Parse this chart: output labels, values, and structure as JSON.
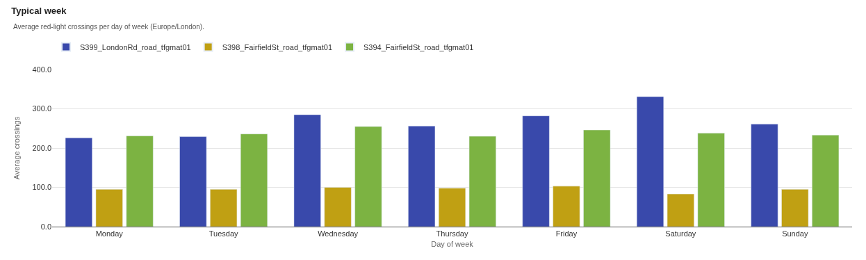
{
  "chart_data": {
    "type": "bar",
    "title": "Typical week",
    "subtitle": "Average red-light crossings per day of week (Europe/London).",
    "xlabel": "Day of week",
    "ylabel": "Average crossings",
    "categories": [
      "Monday",
      "Tuesday",
      "Wednesday",
      "Thursday",
      "Friday",
      "Saturday",
      "Sunday"
    ],
    "series": [
      {
        "name": "S399_LondonRd_road_tfgmat01",
        "color": "#3949ab",
        "values": [
          226,
          229,
          285,
          256,
          282,
          331,
          261
        ]
      },
      {
        "name": "S398_FairfieldSt_road_tfgmat01",
        "color": "#c0a013",
        "values": [
          95,
          95,
          100,
          98,
          103,
          83,
          95
        ]
      },
      {
        "name": "S394_FairfieldSt_road_tfgmat01",
        "color": "#7cb342",
        "values": [
          231,
          236,
          255,
          230,
          246,
          238,
          233
        ]
      }
    ],
    "ylim": [
      0,
      400
    ],
    "yticks": [
      {
        "value": 0,
        "label": "0.0"
      },
      {
        "value": 100,
        "label": "100.0"
      },
      {
        "value": 200,
        "label": "200.0"
      },
      {
        "value": 300,
        "label": "300.0"
      },
      {
        "value": 400,
        "label": "400.0"
      }
    ],
    "grid": "y",
    "legend": "top left"
  }
}
